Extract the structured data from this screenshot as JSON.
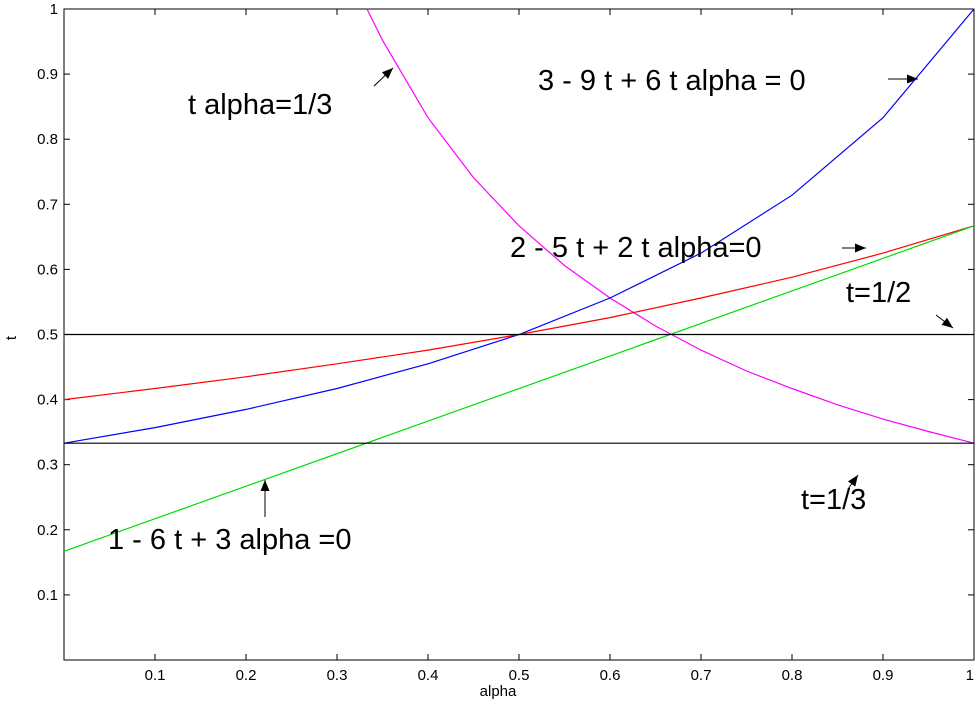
{
  "chart_data": {
    "type": "line",
    "title": "",
    "xlabel": "alpha",
    "ylabel": "t",
    "xlim": [
      0,
      1
    ],
    "ylim": [
      0,
      1
    ],
    "grid": false,
    "legend": "none",
    "x_ticks": [
      "0.1",
      "0.2",
      "0.3",
      "0.4",
      "0.5",
      "0.6",
      "0.7",
      "0.8",
      "0.9",
      "1"
    ],
    "y_ticks": [
      "0.1",
      "0.2",
      "0.3",
      "0.4",
      "0.5",
      "0.6",
      "0.7",
      "0.8",
      "0.9",
      "1"
    ],
    "series": [
      {
        "color": "#ff00ff",
        "x": [
          0.333,
          0.35,
          0.4,
          0.45,
          0.5,
          0.55,
          0.6,
          0.65,
          0.7,
          0.75,
          0.8,
          0.85,
          0.9,
          0.95,
          1.0
        ],
        "y": [
          1.0,
          0.952,
          0.833,
          0.741,
          0.667,
          0.606,
          0.556,
          0.513,
          0.476,
          0.444,
          0.417,
          0.392,
          0.37,
          0.351,
          0.333
        ]
      },
      {
        "color": "#0000ff",
        "x": [
          0.0,
          0.1,
          0.2,
          0.3,
          0.4,
          0.5,
          0.6,
          0.7,
          0.8,
          0.9,
          1.0
        ],
        "y": [
          0.333,
          0.357,
          0.385,
          0.417,
          0.455,
          0.5,
          0.556,
          0.625,
          0.714,
          0.833,
          1.0
        ]
      },
      {
        "color": "#ff0000",
        "x": [
          0.0,
          0.1,
          0.2,
          0.3,
          0.4,
          0.5,
          0.6,
          0.7,
          0.8,
          0.9,
          1.0
        ],
        "y": [
          0.4,
          0.417,
          0.435,
          0.455,
          0.476,
          0.5,
          0.526,
          0.556,
          0.588,
          0.625,
          0.667
        ]
      },
      {
        "color": "#00dd00",
        "x": [
          0.0,
          1.0
        ],
        "y": [
          0.167,
          0.667
        ]
      },
      {
        "color": "#000000",
        "x": [
          0.0,
          1.0
        ],
        "y": [
          0.5,
          0.5
        ]
      },
      {
        "color": "#000000",
        "x": [
          0.0,
          1.0
        ],
        "y": [
          0.333,
          0.333
        ]
      }
    ],
    "annotations": [
      {
        "text": "t alpha=1/3"
      },
      {
        "text": "3 - 9 t + 6 t alpha = 0"
      },
      {
        "text": "2 - 5 t + 2 t alpha=0"
      },
      {
        "text": "t=1/2"
      },
      {
        "text": "t=1/3"
      },
      {
        "text": "1 - 6 t + 3 alpha =0"
      }
    ]
  }
}
